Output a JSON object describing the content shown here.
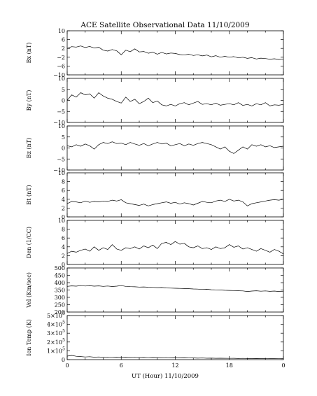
{
  "chart_data": {
    "type": "line",
    "title": "ACE Satellite Observational Data   11/10/2009",
    "xlabel": "UT (Hour)  11/10/2009",
    "x_ticks": [
      "0",
      "6",
      "12",
      "18",
      "0"
    ],
    "xlim": [
      0,
      24
    ],
    "panels": [
      {
        "id": "bx",
        "ylabel": "Bx (nT)",
        "ylim": [
          -10,
          10
        ],
        "y_ticks": [
          10,
          6,
          2,
          -2,
          -6,
          -10
        ],
        "y_tick_labels": [
          "10",
          "6",
          "2",
          "−2",
          "−6",
          "−10"
        ],
        "x": [
          0,
          0.5,
          1,
          1.5,
          2,
          2.5,
          3,
          3.5,
          4,
          4.5,
          5,
          5.5,
          6,
          6.5,
          7,
          7.5,
          8,
          8.5,
          9,
          9.5,
          10,
          10.5,
          11,
          11.5,
          12,
          12.5,
          13,
          13.5,
          14,
          14.5,
          15,
          15.5,
          16,
          16.5,
          17,
          17.5,
          18,
          18.5,
          19,
          19.5,
          20,
          20.5,
          21,
          21.5,
          22,
          22.5,
          23,
          23.5,
          24
        ],
        "y": [
          2,
          2.8,
          2.6,
          3.1,
          2.4,
          2.9,
          2.2,
          2.5,
          1.2,
          0.8,
          1.5,
          0.9,
          -0.9,
          1.2,
          0.5,
          1.8,
          0.4,
          0.6,
          -0.2,
          0.3,
          -0.6,
          0.2,
          -0.5,
          -0.1,
          -0.3,
          -0.8,
          -1.0,
          -0.6,
          -1.2,
          -0.9,
          -1.4,
          -1.0,
          -1.8,
          -1.3,
          -2.0,
          -1.6,
          -2.0,
          -1.7,
          -2.3,
          -2.0,
          -2.5,
          -2.2,
          -2.8,
          -2.4,
          -2.6,
          -2.9,
          -2.7,
          -3.0,
          -2.8
        ]
      },
      {
        "id": "by",
        "ylabel": "By (nT)",
        "ylim": [
          -10,
          10
        ],
        "y_ticks": [
          10,
          5,
          0,
          -5,
          -10
        ],
        "y_tick_labels": [
          "10",
          "5",
          "0",
          "−5",
          "−10"
        ],
        "x": [
          0,
          0.5,
          1,
          1.5,
          2,
          2.5,
          3,
          3.5,
          4,
          4.5,
          5,
          5.5,
          6,
          6.5,
          7,
          7.5,
          8,
          8.5,
          9,
          9.5,
          10,
          10.5,
          11,
          11.5,
          12,
          12.5,
          13,
          13.5,
          14,
          14.5,
          15,
          15.5,
          16,
          16.5,
          17,
          17.5,
          18,
          18.5,
          19,
          19.5,
          20,
          20.5,
          21,
          21.5,
          22,
          22.5,
          23,
          23.5,
          24
        ],
        "y": [
          0,
          2.5,
          1.5,
          3.5,
          2.5,
          3.0,
          1.0,
          3.5,
          2.0,
          1.0,
          0.5,
          -0.5,
          -1.2,
          1.5,
          -0.5,
          0.5,
          -1.5,
          -0.5,
          1.0,
          -1.0,
          -0.3,
          -2.0,
          -2.5,
          -1.8,
          -2.5,
          -1.5,
          -1.0,
          -2.0,
          -1.2,
          -0.5,
          -1.8,
          -1.5,
          -2.0,
          -1.2,
          -2.2,
          -1.8,
          -1.5,
          -2.0,
          -1.0,
          -2.3,
          -1.8,
          -2.5,
          -1.5,
          -2.0,
          -1.0,
          -2.5,
          -2.0,
          -2.2,
          -1.8
        ]
      },
      {
        "id": "bz",
        "ylabel": "Bz (nT)",
        "ylim": [
          -10,
          10
        ],
        "y_ticks": [
          10,
          5,
          0,
          -5,
          -10
        ],
        "y_tick_labels": [
          "10",
          "5",
          "0",
          "−5",
          "−10"
        ],
        "x": [
          0,
          0.5,
          1,
          1.5,
          2,
          2.5,
          3,
          3.5,
          4,
          4.5,
          5,
          5.5,
          6,
          6.5,
          7,
          7.5,
          8,
          8.5,
          9,
          9.5,
          10,
          10.5,
          11,
          11.5,
          12,
          12.5,
          13,
          13.5,
          14,
          14.5,
          15,
          15.5,
          16,
          16.5,
          17,
          17.5,
          18,
          18.5,
          19,
          19.5,
          20,
          20.5,
          21,
          21.5,
          22,
          22.5,
          23,
          23.5,
          24
        ],
        "y": [
          1.0,
          0.5,
          1.5,
          0.8,
          1.8,
          1.0,
          -0.5,
          1.5,
          2.5,
          2.0,
          2.8,
          2.0,
          2.2,
          1.5,
          2.5,
          1.8,
          1.2,
          2.0,
          1.0,
          1.8,
          2.5,
          1.8,
          2.2,
          1.0,
          1.5,
          2.0,
          1.0,
          1.8,
          1.2,
          2.0,
          2.5,
          2.0,
          1.5,
          0.5,
          -0.5,
          0.5,
          -1.5,
          -2.5,
          -1.0,
          0.5,
          -0.5,
          1.5,
          0.8,
          1.5,
          0.5,
          1.0,
          0.2,
          0.5,
          0.8
        ]
      },
      {
        "id": "bt",
        "ylabel": "Bt (nT)",
        "ylim": [
          0,
          10
        ],
        "y_ticks": [
          10,
          8,
          6,
          4,
          2,
          0
        ],
        "y_tick_labels": [
          "10",
          "8",
          "6",
          "4",
          "2",
          "0"
        ],
        "x": [
          0,
          0.5,
          1,
          1.5,
          2,
          2.5,
          3,
          3.5,
          4,
          4.5,
          5,
          5.5,
          6,
          6.5,
          7,
          7.5,
          8,
          8.5,
          9,
          9.5,
          10,
          10.5,
          11,
          11.5,
          12,
          12.5,
          13,
          13.5,
          14,
          14.5,
          15,
          15.5,
          16,
          16.5,
          17,
          17.5,
          18,
          18.5,
          19,
          19.5,
          20,
          20.5,
          21,
          21.5,
          22,
          22.5,
          23,
          23.5,
          24
        ],
        "y": [
          3.0,
          3.5,
          3.4,
          3.2,
          3.6,
          3.3,
          3.5,
          3.4,
          3.6,
          3.5,
          3.8,
          3.6,
          3.9,
          3.2,
          3.0,
          2.8,
          2.6,
          2.9,
          2.5,
          2.8,
          3.0,
          3.2,
          3.4,
          3.1,
          3.3,
          2.9,
          3.2,
          3.0,
          2.7,
          3.1,
          3.5,
          3.3,
          3.2,
          3.6,
          3.8,
          3.5,
          4.0,
          3.6,
          3.8,
          3.4,
          2.5,
          3.0,
          3.2,
          3.4,
          3.6,
          3.8,
          3.9,
          3.8,
          4.0
        ]
      },
      {
        "id": "den",
        "ylabel": "Den (1/CC)",
        "ylim": [
          0,
          10
        ],
        "y_ticks": [
          10,
          8,
          6,
          4,
          2,
          0
        ],
        "y_tick_labels": [
          "10",
          "8",
          "6",
          "4",
          "2",
          "0"
        ],
        "x": [
          0,
          0.5,
          1,
          1.5,
          2,
          2.5,
          3,
          3.5,
          4,
          4.5,
          5,
          5.5,
          6,
          6.5,
          7,
          7.5,
          8,
          8.5,
          9,
          9.5,
          10,
          10.5,
          11,
          11.5,
          12,
          12.5,
          13,
          13.5,
          14,
          14.5,
          15,
          15.5,
          16,
          16.5,
          17,
          17.5,
          18,
          18.5,
          19,
          19.5,
          20,
          20.5,
          21,
          21.5,
          22,
          22.5,
          23,
          23.5,
          24
        ],
        "y": [
          2.5,
          3.0,
          2.8,
          3.2,
          3.5,
          3.0,
          4.0,
          3.2,
          3.8,
          3.4,
          4.5,
          3.5,
          3.2,
          3.8,
          3.6,
          4.0,
          3.5,
          4.2,
          3.8,
          4.4,
          3.6,
          4.8,
          5.0,
          4.5,
          5.2,
          4.6,
          4.8,
          4.0,
          3.8,
          4.2,
          3.6,
          3.8,
          3.4,
          4.0,
          3.6,
          3.8,
          4.5,
          3.9,
          4.2,
          3.5,
          3.8,
          3.4,
          3.0,
          3.6,
          3.2,
          2.8,
          3.4,
          3.0,
          2.4
        ]
      },
      {
        "id": "vel",
        "ylabel": "Vel (Km/sec)",
        "ylim": [
          200,
          500
        ],
        "y_ticks": [
          500,
          450,
          400,
          350,
          300,
          250,
          200
        ],
        "y_tick_labels": [
          "500",
          "450",
          "400",
          "350",
          "300",
          "250",
          "200"
        ],
        "x": [
          0,
          0.5,
          1,
          1.5,
          2,
          2.5,
          3,
          3.5,
          4,
          4.5,
          5,
          5.5,
          6,
          6.5,
          7,
          7.5,
          8,
          8.5,
          9,
          9.5,
          10,
          10.5,
          11,
          11.5,
          12,
          12.5,
          13,
          13.5,
          14,
          14.5,
          15,
          15.5,
          16,
          16.5,
          17,
          17.5,
          18,
          18.5,
          19,
          19.5,
          20,
          20.5,
          21,
          21.5,
          22,
          22.5,
          23,
          23.5,
          24
        ],
        "y": [
          375,
          378,
          376,
          380,
          377,
          379,
          376,
          378,
          375,
          377,
          374,
          376,
          380,
          375,
          373,
          372,
          370,
          371,
          369,
          368,
          366,
          367,
          364,
          363,
          362,
          361,
          360,
          359,
          357,
          356,
          354,
          355,
          352,
          351,
          350,
          348,
          347,
          346,
          345,
          344,
          340,
          343,
          345,
          342,
          344,
          341,
          343,
          340,
          342
        ]
      },
      {
        "id": "temp",
        "ylabel": "Ion Temp (K)",
        "ylim": [
          0,
          500000
        ],
        "y_ticks": [
          500000,
          400000,
          300000,
          200000,
          100000,
          0
        ],
        "y_tick_labels": [
          "5×10",
          "4×10",
          "3×10",
          "2×10",
          "1×10",
          "0"
        ],
        "y_tick_exponents": [
          "5",
          "5",
          "5",
          "5",
          "5",
          ""
        ],
        "x": [
          0,
          0.5,
          1,
          1.5,
          2,
          2.5,
          3,
          3.5,
          4,
          4.5,
          5,
          5.5,
          6,
          6.5,
          7,
          7.5,
          8,
          8.5,
          9,
          9.5,
          10,
          10.5,
          11,
          11.5,
          12,
          12.5,
          13,
          13.5,
          14,
          14.5,
          15,
          15.5,
          16,
          16.5,
          17,
          17.5,
          18,
          18.5,
          19,
          19.5,
          20,
          20.5,
          21,
          21.5,
          22,
          22.5,
          23,
          23.5,
          24
        ],
        "y": [
          40000,
          48000,
          38000,
          35000,
          30000,
          33000,
          28000,
          30000,
          27000,
          29000,
          26000,
          28000,
          25000,
          27000,
          24000,
          26000,
          23000,
          25000,
          22000,
          24000,
          23000,
          21000,
          22000,
          20000,
          21000,
          19000,
          20000,
          18000,
          19000,
          17000,
          18000,
          16000,
          17000,
          15000,
          16000,
          15000,
          14000,
          15000,
          13000,
          14000,
          13000,
          12000,
          13000,
          12000,
          11000,
          12000,
          11000,
          10000,
          11000
        ]
      }
    ]
  }
}
